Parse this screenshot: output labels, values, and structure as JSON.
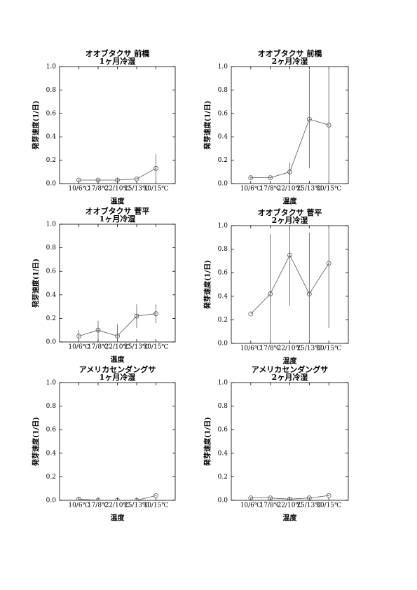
{
  "chart_data": [
    {
      "type": "line",
      "title": "オオブタクサ 前橋",
      "subtitle": "1ヶ月冷湿",
      "xlabel": "温度",
      "ylabel": "発芽速度(1/日)",
      "categories": [
        "10/6℃",
        "17/8℃",
        "22/10℃",
        "25/13℃",
        "30/15℃"
      ],
      "values": [
        0.03,
        0.03,
        0.03,
        0.04,
        0.13
      ],
      "errors": [
        0.005,
        0.01,
        0.015,
        0.005,
        0.12
      ],
      "color": "#555555",
      "ylim": [
        0,
        1
      ],
      "yticks": [
        {
          "value": 0,
          "label": "0.0"
        },
        0.2,
        0.4,
        0.6,
        0.8,
        {
          "value": 1,
          "label": "1.0"
        }
      ]
    },
    {
      "type": "line",
      "title": "オオブタクサ 前橋",
      "subtitle": "2ヶ月冷湿",
      "xlabel": "温度",
      "ylabel": "発芽速度(1/日)",
      "categories": [
        "10/6℃",
        "17/8℃",
        "22/10℃",
        "25/13℃",
        "30/15℃"
      ],
      "values": [
        0.05,
        0.05,
        0.1,
        0.55,
        0.5
      ],
      "errors": [
        0.01,
        0.01,
        0.08,
        0.42,
        0.6
      ],
      "color": "#555555",
      "ylim": [
        0,
        1
      ],
      "yticks": [
        {
          "value": 0,
          "label": "0.0"
        },
        0.2,
        0.4,
        0.6,
        0.8,
        {
          "value": 1,
          "label": "1.0"
        }
      ]
    },
    {
      "type": "line",
      "title": "オオブタクサ 菅平",
      "subtitle": "1ヶ月冷湿",
      "xlabel": "温度",
      "ylabel": "発芽速度(1/日)",
      "categories": [
        "10/6℃",
        "17/8℃",
        "22/10℃",
        "25/13℃",
        "30/15℃"
      ],
      "values": [
        0.05,
        0.1,
        0.05,
        0.22,
        0.24
      ],
      "errors": [
        0.05,
        0.08,
        0.1,
        0.1,
        0.08
      ],
      "color": "#555555",
      "ylim": [
        0,
        1
      ],
      "yticks": [
        {
          "value": 0,
          "label": "0.0"
        },
        0.2,
        0.4,
        0.6,
        0.8,
        {
          "value": 1,
          "label": "1.0"
        }
      ]
    },
    {
      "type": "line",
      "title": "オオブタクサ 菅平",
      "subtitle": "2ヶ月冷湿",
      "xlabel": "温度",
      "ylabel": "発芽速度(1/日)",
      "categories": [
        "10/6℃",
        "17/8℃",
        "22/10℃",
        "25/13℃",
        "30/15℃"
      ],
      "values": [
        0.25,
        0.42,
        0.75,
        0.42,
        0.68
      ],
      "errors": [
        0,
        0.51,
        0.43,
        0.52,
        0.55
      ],
      "color": "#555555",
      "ylim": [
        0,
        1
      ],
      "yticks": [
        {
          "value": 0,
          "label": "0.0"
        },
        0.2,
        0.4,
        0.6,
        0.8,
        {
          "value": 1,
          "label": "1.0"
        }
      ]
    },
    {
      "type": "line",
      "title": "アメリカセンダングサ",
      "subtitle": "1ヶ月冷湿",
      "xlabel": "温度",
      "ylabel": "発芽速度(1/日)",
      "categories": [
        "10/6℃",
        "17/8℃",
        "22/10℃",
        "25/13℃",
        "30/15℃"
      ],
      "values": [
        0.01,
        0,
        0,
        0,
        0.04
      ],
      "errors": [
        0.01,
        0.005,
        0.005,
        0.005,
        0.005
      ],
      "color": "#555555",
      "ylim": [
        0,
        1
      ],
      "yticks": [
        {
          "value": 0,
          "label": "0.0"
        },
        0.2,
        0.4,
        0.6,
        0.8,
        {
          "value": 1,
          "label": "1.0"
        }
      ]
    },
    {
      "type": "line",
      "title": "アメリカセンダングサ",
      "subtitle": "2ヶ月冷湿",
      "xlabel": "温度",
      "ylabel": "発芽速度(1/日)",
      "categories": [
        "10/6℃",
        "17/8℃",
        "22/10℃",
        "25/13℃",
        "30/15℃"
      ],
      "values": [
        0.02,
        0.02,
        0.01,
        0.02,
        0.04
      ],
      "errors": [
        0.005,
        0.005,
        0.005,
        0.005,
        0.005
      ],
      "color": "#555555",
      "ylim": [
        0,
        1
      ],
      "yticks": [
        {
          "value": 0,
          "label": "0.0"
        },
        0.2,
        0.4,
        0.6,
        0.8,
        {
          "value": 1,
          "label": "1.0"
        }
      ]
    }
  ]
}
